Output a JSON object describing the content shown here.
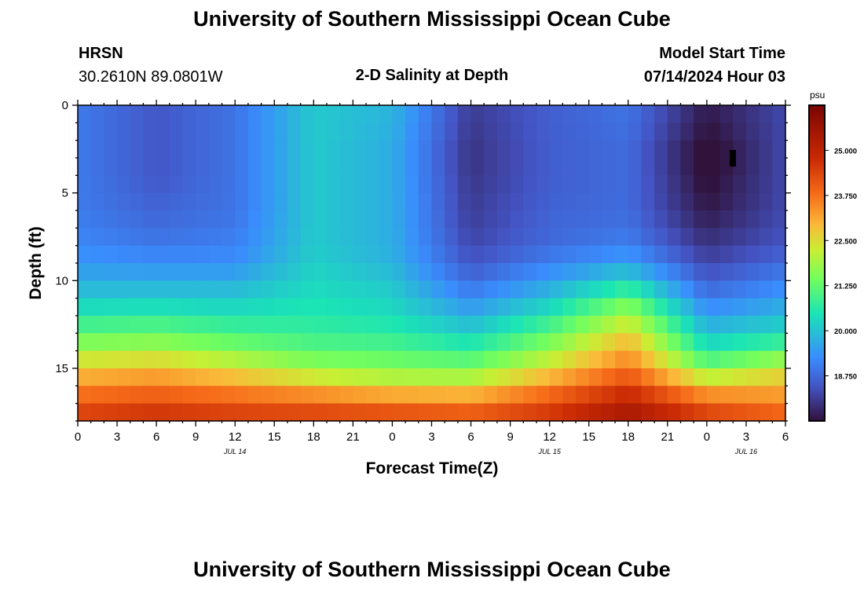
{
  "header": {
    "title_top": "University of Southern Mississippi Ocean Cube",
    "title_bottom": "University of Southern Mississippi Ocean Cube",
    "station": "HRSN",
    "coords": "30.2610N  89.0801W",
    "plot_title": "2-D Salinity at Depth",
    "model_start_label": "Model Start Time",
    "model_start_value": "07/14/2024 Hour 03"
  },
  "chart_data": {
    "type": "heatmap",
    "title": "2-D Salinity at Depth",
    "xlabel": "Forecast Time(Z)",
    "ylabel": "Depth (ft)",
    "xlim_hours": [
      0,
      54
    ],
    "ylim_ft": [
      0,
      18
    ],
    "x_ticks": [
      "0",
      "3",
      "6",
      "9",
      "12",
      "15",
      "18",
      "21",
      "0",
      "3",
      "6",
      "9",
      "12",
      "15",
      "18",
      "21",
      "0",
      "3",
      "6"
    ],
    "y_ticks": [
      "0",
      "5",
      "10",
      "15"
    ],
    "date_labels": [
      {
        "label": "JUL 14",
        "hour": 12
      },
      {
        "label": "JUL 15",
        "hour": 36
      },
      {
        "label": "JUL 16",
        "hour": 51
      }
    ],
    "colorbar": {
      "unit": "psu",
      "min": 17.5,
      "max": 26.25,
      "ticks": [
        "18.750",
        "20.000",
        "21.250",
        "22.500",
        "23.750",
        "25.000"
      ],
      "tick_values": [
        18.75,
        20.0,
        21.25,
        22.5,
        23.75,
        25.0
      ]
    },
    "depth_levels_ft": [
      0,
      1,
      2,
      3,
      4,
      5,
      6,
      7,
      8,
      9,
      10,
      11,
      12,
      13,
      14,
      15,
      16,
      17,
      18
    ],
    "time_hours": [
      0,
      6,
      12,
      18,
      24,
      30,
      36,
      42,
      48,
      54
    ],
    "salinity_psu": [
      [
        19.0,
        18.5,
        18.9,
        20.1,
        19.8,
        18.1,
        18.6,
        18.9,
        17.6,
        18.3
      ],
      [
        19.0,
        18.5,
        18.9,
        20.1,
        19.8,
        18.1,
        18.6,
        18.9,
        17.6,
        18.3
      ],
      [
        19.0,
        18.5,
        18.9,
        20.1,
        19.7,
        18.0,
        18.6,
        18.8,
        17.4,
        18.3
      ],
      [
        19.0,
        18.5,
        18.9,
        20.1,
        19.7,
        18.0,
        18.6,
        18.8,
        17.3,
        18.3
      ],
      [
        19.0,
        18.5,
        18.9,
        20.1,
        19.7,
        18.0,
        18.6,
        18.8,
        17.4,
        18.3
      ],
      [
        19.0,
        18.6,
        18.9,
        20.1,
        19.7,
        18.1,
        18.6,
        18.8,
        17.5,
        18.3
      ],
      [
        19.0,
        18.7,
        18.9,
        20.1,
        19.7,
        18.1,
        18.7,
        18.8,
        17.6,
        18.3
      ],
      [
        19.1,
        18.8,
        19.0,
        20.1,
        19.7,
        18.2,
        18.7,
        18.9,
        17.8,
        18.4
      ],
      [
        19.2,
        19.0,
        19.1,
        20.1,
        19.7,
        18.3,
        18.8,
        19.1,
        18.0,
        18.5
      ],
      [
        19.4,
        19.3,
        19.3,
        20.2,
        19.8,
        18.5,
        19.1,
        19.6,
        18.3,
        18.8
      ],
      [
        19.7,
        19.7,
        19.7,
        20.3,
        20.0,
        18.8,
        19.5,
        20.3,
        18.6,
        19.1
      ],
      [
        20.1,
        20.1,
        20.1,
        20.4,
        20.2,
        19.2,
        20.0,
        21.2,
        19.0,
        19.5
      ],
      [
        20.6,
        20.7,
        20.5,
        20.6,
        20.4,
        19.7,
        20.6,
        22.0,
        19.5,
        19.9
      ],
      [
        21.2,
        21.3,
        21.0,
        20.8,
        20.7,
        20.2,
        21.2,
        22.6,
        20.0,
        20.4
      ],
      [
        21.9,
        22.0,
        21.6,
        21.2,
        21.1,
        20.8,
        21.8,
        23.2,
        20.6,
        21.2
      ],
      [
        22.7,
        22.9,
        22.4,
        21.8,
        21.6,
        21.5,
        22.5,
        23.7,
        21.5,
        22.3
      ],
      [
        23.4,
        23.6,
        23.3,
        22.8,
        22.4,
        22.4,
        23.4,
        24.5,
        22.8,
        23.0
      ],
      [
        24.1,
        24.3,
        24.1,
        24.0,
        23.8,
        23.6,
        24.3,
        25.1,
        24.0,
        23.5
      ],
      [
        24.6,
        24.8,
        24.6,
        24.5,
        24.4,
        24.3,
        24.7,
        25.6,
        24.6,
        24.2
      ]
    ]
  }
}
